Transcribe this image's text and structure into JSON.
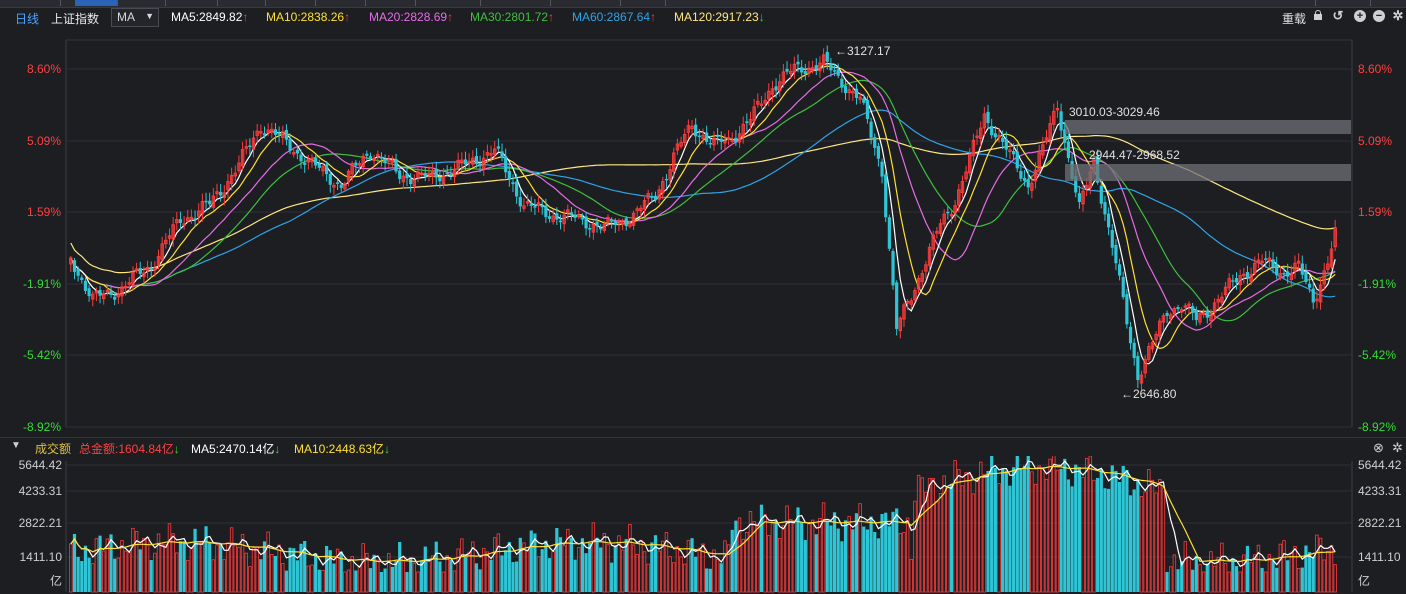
{
  "toolbar": {
    "period": "日线",
    "index_name": "上证指数",
    "indicator": "MA",
    "ma": [
      {
        "label": "MA5:2849.82",
        "arrow": "↑",
        "color": "#ffffff",
        "arrow_color": "#ff3b30"
      },
      {
        "label": "MA10:2838.26",
        "arrow": "↑",
        "color": "#ffe033",
        "arrow_color": "#ff3b30"
      },
      {
        "label": "MA20:2828.69",
        "arrow": "↑",
        "color": "#e66ce6",
        "arrow_color": "#ff3b30"
      },
      {
        "label": "MA30:2801.72",
        "arrow": "↑",
        "color": "#3fbf3f",
        "arrow_color": "#ff3b30"
      },
      {
        "label": "MA60:2867.64",
        "arrow": "↑",
        "color": "#2fa3e6",
        "arrow_color": "#ff3b30"
      },
      {
        "label": "MA120:2917.23",
        "arrow": "↓",
        "color": "#ffe680",
        "arrow_color": "#33dd33"
      }
    ],
    "restore_label": "重载"
  },
  "price_axis": {
    "ticks": [
      "8.60%",
      "5.09%",
      "1.59%",
      "-1.91%",
      "-5.42%",
      "-8.92%"
    ],
    "tick_colors": [
      "#ff4040",
      "#ff4040",
      "#ff4040",
      "#33dd33",
      "#33dd33",
      "#33dd33"
    ]
  },
  "annotations": {
    "high": "←3127.17",
    "low": "←2646.80",
    "zone1": "3010.03-3029.46",
    "zone2": "2944.47-2968.52"
  },
  "volume": {
    "title": "成交额",
    "total": "总金额:1604.84亿",
    "total_arrow": "↓",
    "ma5": "MA5:2470.14亿",
    "ma5_arrow": "↓",
    "ma10": "MA10:2448.63亿",
    "ma10_arrow": "↓",
    "axis_ticks": [
      "5644.42",
      "4233.31",
      "2822.21",
      "1411.10",
      "亿"
    ]
  },
  "chart_data": {
    "type": "candlestick",
    "colors": {
      "up": "#ff3b3b",
      "down": "#2ec6d6",
      "ma5": "#ffffff",
      "ma10": "#ffe033",
      "ma20": "#e66ce6",
      "ma30": "#3fbf3f",
      "ma60": "#2fa3e6",
      "ma120": "#ffe680"
    },
    "y_axis_pct": [
      8.6,
      5.09,
      1.59,
      -1.91,
      -5.42,
      -8.92
    ],
    "high_value": 3127.17,
    "low_value": 2646.8,
    "volume_unit": "亿",
    "volume_axis": [
      5644.42,
      4233.31,
      2822.21,
      1411.1
    ]
  }
}
